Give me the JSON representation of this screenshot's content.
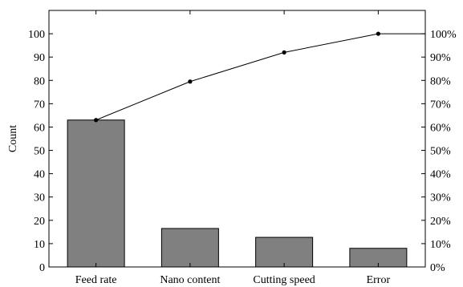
{
  "chart_data": {
    "type": "bar",
    "title": "",
    "xlabel": "",
    "ylabel": "Count",
    "categories": [
      "Feed rate",
      "Nano content",
      "Cutting speed",
      "Error"
    ],
    "series": [
      {
        "values": [
          63,
          16.5,
          12.7,
          8
        ]
      }
    ],
    "cumulative_percent": [
      63,
      79.5,
      92,
      100
    ],
    "ylim": [
      0,
      110
    ],
    "y_ticks": [
      0,
      10,
      20,
      30,
      40,
      50,
      60,
      70,
      80,
      90,
      100
    ],
    "y2_ticks": [
      "0%",
      "10%",
      "20%",
      "30%",
      "40%",
      "50%",
      "60%",
      "70%",
      "80%",
      "90%",
      "100%"
    ],
    "grid": false,
    "legend": "none",
    "colors": {
      "bar_fill": "#808080",
      "bar_stroke": "#000000",
      "line": "#000000"
    }
  }
}
